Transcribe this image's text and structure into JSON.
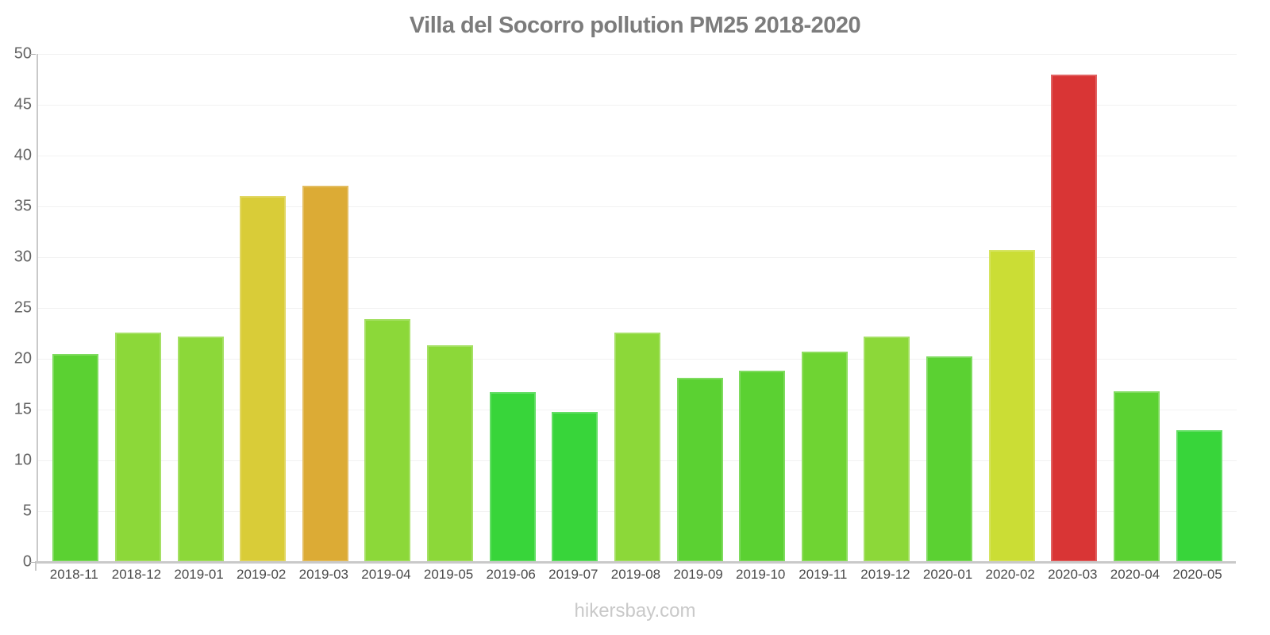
{
  "title": "Villa del Socorro pollution PM25 2018-2020",
  "watermark": "hikersbay.com",
  "style": {
    "axis_color": "#c9c9c9",
    "grid_color": "#f2f2f2",
    "title_color": "#7c7c7c",
    "y_label_color": "#636363",
    "x_label_color": "#4a4a4a",
    "watermark_color": "#c9c9c9"
  },
  "chart_data": {
    "type": "bar",
    "title": "Villa del Socorro pollution PM25 2018-2020",
    "xlabel": "",
    "ylabel": "",
    "ylim": [
      0,
      50
    ],
    "yticks": [
      0,
      5,
      10,
      15,
      20,
      25,
      30,
      35,
      40,
      45,
      50
    ],
    "grid": "horizontal",
    "legend_position": "none",
    "categories": [
      "2018-11",
      "2018-12",
      "2019-01",
      "2019-02",
      "2019-03",
      "2019-04",
      "2019-05",
      "2019-06",
      "2019-07",
      "2019-08",
      "2019-09",
      "2019-10",
      "2019-11",
      "2019-12",
      "2020-01",
      "2020-02",
      "2020-03",
      "2020-04",
      "2020-05"
    ],
    "values": [
      20.5,
      22.6,
      22.2,
      36,
      37,
      23.9,
      21.3,
      16.7,
      14.8,
      22.6,
      18.1,
      18.8,
      20.7,
      22.2,
      20.2,
      30.7,
      48,
      16.8,
      13
    ],
    "bar_colors": [
      "#5bd132",
      "#8cd839",
      "#8cd839",
      "#d9cc38",
      "#dcab35",
      "#8cd839",
      "#8cd839",
      "#38d53a",
      "#38d53a",
      "#8cd839",
      "#5bd132",
      "#5bd132",
      "#6fd433",
      "#8cd839",
      "#5bd132",
      "#cbdd35",
      "#d93535",
      "#5bd132",
      "#38d53a"
    ]
  }
}
